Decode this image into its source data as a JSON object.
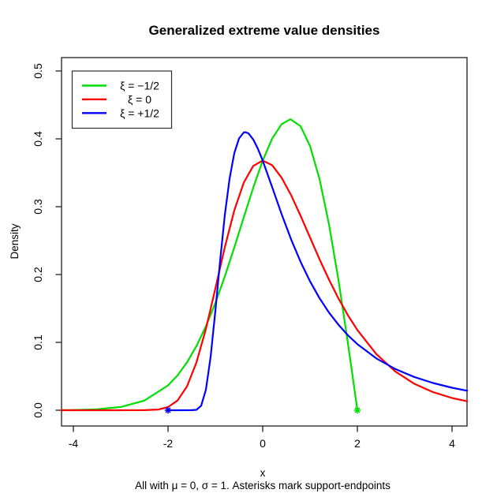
{
  "title": "Generalized extreme value densities",
  "subtitle": "All with μ = 0, σ = 1. Asterisks mark support-endpoints",
  "x_axis": {
    "label": "x",
    "tick_labels": [
      "-4",
      "-2",
      "0",
      "2",
      "4"
    ]
  },
  "y_axis": {
    "label": "Density",
    "tick_labels": [
      "0.0",
      "0.1",
      "0.2",
      "0.3",
      "0.4",
      "0.5"
    ]
  },
  "legend": {
    "items": [
      {
        "label": "ξ = −1/2",
        "color": "#00DF00"
      },
      {
        "label": "ξ = 0",
        "color": "#FF0000"
      },
      {
        "label": "ξ = +1/2",
        "color": "#0000FF"
      }
    ]
  },
  "colors": {
    "axis": "#2e2e2e",
    "text": "#000000",
    "background": "#ffffff"
  },
  "chart_data": {
    "type": "line",
    "title": "Generalized extreme value densities",
    "xlabel": "x",
    "ylabel": "Density",
    "annotation": "All with μ = 0, σ = 1. Asterisks mark support-endpoints",
    "xlim": [
      -4.25,
      4.32
    ],
    "ylim": [
      -0.023,
      0.52
    ],
    "x_ticks": [
      -4,
      -2,
      0,
      2,
      4
    ],
    "y_ticks": [
      0,
      0.1,
      0.2,
      0.3,
      0.4,
      0.5
    ],
    "grid": false,
    "legend_position": "top-left",
    "series": [
      {
        "name": "ξ = −1/2",
        "color": "#00DF00",
        "shape_param": -0.5,
        "mu": 0,
        "sigma": 1,
        "points": [
          [
            -4.25,
            0.0002
          ],
          [
            -4,
            0.0004
          ],
          [
            -3.5,
            0.0014
          ],
          [
            -3,
            0.0048
          ],
          [
            -2.5,
            0.0142
          ],
          [
            -2,
            0.0366
          ],
          [
            -1.8,
            0.0513
          ],
          [
            -1.6,
            0.0705
          ],
          [
            -1.4,
            0.0945
          ],
          [
            -1.2,
            0.1237
          ],
          [
            -1,
            0.1581
          ],
          [
            -0.8,
            0.1972
          ],
          [
            -0.6,
            0.2399
          ],
          [
            -0.4,
            0.2843
          ],
          [
            -0.2,
            0.328
          ],
          [
            0,
            0.3679
          ],
          [
            0.2,
            0.4004
          ],
          [
            0.4,
            0.4218
          ],
          [
            0.586,
            0.4289
          ],
          [
            0.8,
            0.4186
          ],
          [
            1,
            0.3894
          ],
          [
            1.2,
            0.3409
          ],
          [
            1.4,
            0.2742
          ],
          [
            1.6,
            0.1922
          ],
          [
            1.8,
            0.099
          ],
          [
            1.9,
            0.0499
          ],
          [
            1.95,
            0.025
          ],
          [
            2,
            0
          ]
        ]
      },
      {
        "name": "ξ = 0",
        "color": "#FF0000",
        "shape_param": 0,
        "mu": 0,
        "sigma": 1,
        "points": [
          [
            -4.25,
            0
          ],
          [
            -3.5,
            0
          ],
          [
            -3,
            0
          ],
          [
            -2.5,
            0.0001
          ],
          [
            -2.2,
            0.0011
          ],
          [
            -2,
            0.0046
          ],
          [
            -1.8,
            0.0143
          ],
          [
            -1.6,
            0.035
          ],
          [
            -1.4,
            0.0703
          ],
          [
            -1.2,
            0.1199
          ],
          [
            -1,
            0.1794
          ],
          [
            -0.8,
            0.2404
          ],
          [
            -0.6,
            0.2945
          ],
          [
            -0.4,
            0.3355
          ],
          [
            -0.2,
            0.3601
          ],
          [
            0,
            0.3679
          ],
          [
            0.2,
            0.3612
          ],
          [
            0.4,
            0.3427
          ],
          [
            0.6,
            0.317
          ],
          [
            0.8,
            0.2866
          ],
          [
            1,
            0.2546
          ],
          [
            1.2,
            0.2226
          ],
          [
            1.4,
            0.1926
          ],
          [
            1.6,
            0.1649
          ],
          [
            1.8,
            0.14
          ],
          [
            2,
            0.1182
          ],
          [
            2.4,
            0.0828
          ],
          [
            2.8,
            0.0572
          ],
          [
            3.2,
            0.0391
          ],
          [
            3.6,
            0.0266
          ],
          [
            4,
            0.018
          ],
          [
            4.32,
            0.0131
          ]
        ]
      },
      {
        "name": "ξ = +1/2",
        "color": "#0000FF",
        "shape_param": 0.5,
        "mu": 0,
        "sigma": 1,
        "points": [
          [
            -2,
            0
          ],
          [
            -1.7,
            0
          ],
          [
            -1.5,
            0.0001
          ],
          [
            -1.4,
            0.0006
          ],
          [
            -1.3,
            0.0066
          ],
          [
            -1.2,
            0.0302
          ],
          [
            -1.1,
            0.0787
          ],
          [
            -1,
            0.1465
          ],
          [
            -0.9,
            0.22
          ],
          [
            -0.8,
            0.2879
          ],
          [
            -0.7,
            0.3412
          ],
          [
            -0.6,
            0.3789
          ],
          [
            -0.5,
            0.4006
          ],
          [
            -0.4,
            0.4094
          ],
          [
            -0.367,
            0.4099
          ],
          [
            -0.3,
            0.408
          ],
          [
            -0.2,
            0.3991
          ],
          [
            -0.1,
            0.3851
          ],
          [
            0,
            0.3679
          ],
          [
            0.2,
            0.3288
          ],
          [
            0.4,
            0.289
          ],
          [
            0.6,
            0.2519
          ],
          [
            0.8,
            0.2188
          ],
          [
            1,
            0.19
          ],
          [
            1.2,
            0.1652
          ],
          [
            1.4,
            0.144
          ],
          [
            1.6,
            0.126
          ],
          [
            1.8,
            0.1105
          ],
          [
            2,
            0.0974
          ],
          [
            2.4,
            0.0764
          ],
          [
            2.8,
            0.0608
          ],
          [
            3.2,
            0.0491
          ],
          [
            3.6,
            0.0401
          ],
          [
            4,
            0.0331
          ],
          [
            4.32,
            0.0287
          ]
        ]
      }
    ],
    "markers": [
      {
        "x": -2,
        "y": 0,
        "color": "#0000FF",
        "symbol": "asterisk",
        "meaning": "support endpoint of ξ = +1/2"
      },
      {
        "x": 2,
        "y": 0,
        "color": "#00DF00",
        "symbol": "asterisk",
        "meaning": "support endpoint of ξ = −1/2"
      }
    ]
  }
}
